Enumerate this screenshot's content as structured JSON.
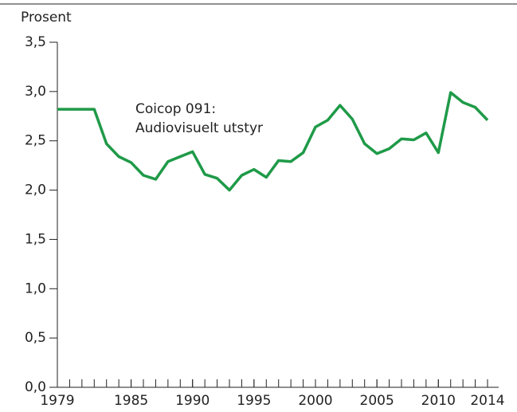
{
  "chart_data": {
    "type": "line",
    "y_label": "Prosent",
    "annotation": [
      "Coicop 091:",
      "Audiovisuelt utstyr"
    ],
    "x": [
      1979,
      1980,
      1981,
      1982,
      1983,
      1984,
      1985,
      1986,
      1987,
      1988,
      1989,
      1990,
      1991,
      1992,
      1993,
      1994,
      1995,
      1996,
      1997,
      1998,
      1999,
      2000,
      2001,
      2002,
      2003,
      2004,
      2005,
      2006,
      2007,
      2008,
      2009,
      2010,
      2011,
      2012,
      2013,
      2014
    ],
    "values": [
      2.82,
      2.82,
      2.82,
      2.82,
      2.47,
      2.34,
      2.28,
      2.15,
      2.11,
      2.29,
      2.34,
      2.39,
      2.16,
      2.12,
      2.0,
      2.15,
      2.21,
      2.13,
      2.3,
      2.29,
      2.38,
      2.64,
      2.71,
      2.86,
      2.72,
      2.47,
      2.37,
      2.42,
      2.52,
      2.51,
      2.58,
      2.38,
      2.99,
      2.89,
      2.84,
      2.71
    ],
    "color": "#1f9a48",
    "xlim": [
      1979,
      2014
    ],
    "xticks": [
      1979,
      1985,
      1990,
      1995,
      2000,
      2005,
      2010,
      2014
    ],
    "ylim": [
      0,
      3.5
    ],
    "yticks": [
      {
        "value": 0,
        "label": "0,0"
      },
      {
        "value": 0.5,
        "label": "0,5"
      },
      {
        "value": 1,
        "label": "1,0"
      },
      {
        "value": 1.5,
        "label": "1,5"
      },
      {
        "value": 2,
        "label": "2,0"
      },
      {
        "value": 2.5,
        "label": "2,5"
      },
      {
        "value": 3,
        "label": "3,0"
      },
      {
        "value": 3.5,
        "label": "3,5"
      }
    ]
  }
}
